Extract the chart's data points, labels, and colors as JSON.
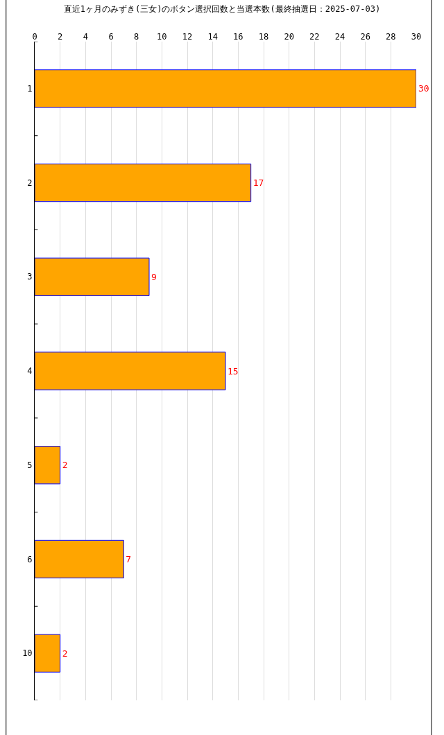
{
  "chart_data": {
    "type": "bar",
    "orientation": "horizontal",
    "title": "直近1ヶ月のみずき(三女)のボタン選択回数と当選本数(最終抽選日：2025-07-03)",
    "categories": [
      "1",
      "2",
      "3",
      "4",
      "5",
      "6",
      "10"
    ],
    "values": [
      30,
      17,
      9,
      15,
      2,
      7,
      2
    ],
    "color": "#ffa500",
    "xlim": [
      0,
      30
    ],
    "xticks": [
      0,
      2,
      4,
      6,
      8,
      10,
      12,
      14,
      16,
      18,
      20,
      22,
      24,
      26,
      28,
      30
    ],
    "grid": "x",
    "data_labels": true
  }
}
